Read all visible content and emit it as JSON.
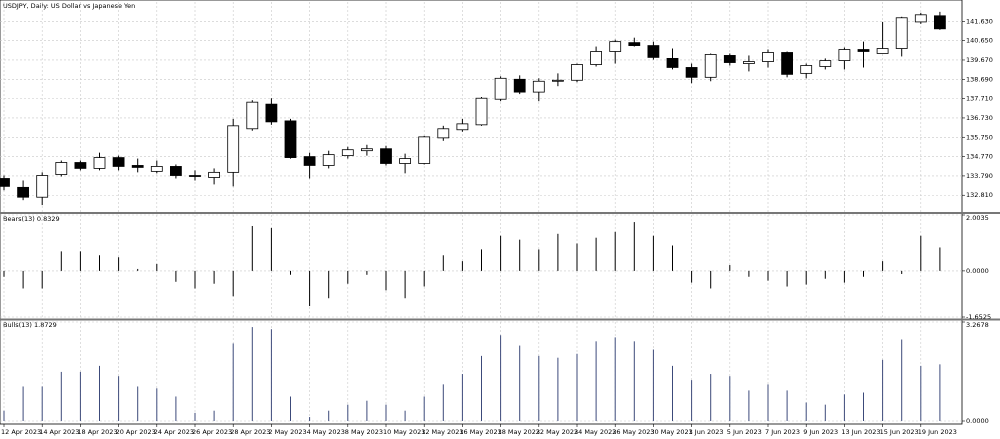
{
  "chart_data": [
    {
      "type": "candlestick",
      "title": "USDJPY, Daily: US Dollar vs Japanese Yen",
      "categories": [
        "12 Apr 2023",
        null,
        "14 Apr 2023",
        null,
        "18 Apr 2023",
        null,
        "20 Apr 2023",
        null,
        "24 Apr 2023",
        null,
        "26 Apr 2023",
        null,
        "28 Apr 2023",
        null,
        "2 May 2023",
        null,
        "4 May 2023",
        null,
        "8 May 2023",
        null,
        "10 May 2023",
        null,
        "12 May 2023",
        null,
        "16 May 2023",
        null,
        "18 May 2023",
        null,
        "22 May 2023",
        null,
        "24 May 2023",
        null,
        "26 May 2023",
        null,
        "30 May 2023",
        null,
        "1 Jun 2023",
        null,
        "5 Jun 2023",
        null,
        "7 Jun 2023",
        null,
        "9 Jun 2023",
        null,
        "13 Jun 2023",
        null,
        "15 Jun 2023",
        null,
        "19 Jun 2023",
        null
      ],
      "open": [
        133.66,
        133.21,
        132.71,
        133.86,
        134.47,
        134.17,
        134.72,
        134.32,
        134.02,
        134.27,
        133.81,
        133.71,
        133.97,
        136.18,
        137.43,
        136.58,
        134.77,
        134.32,
        134.82,
        135.07,
        135.17,
        134.42,
        134.42,
        135.72,
        136.13,
        136.38,
        137.68,
        138.69,
        138.04,
        138.59,
        138.64,
        139.44,
        140.1,
        140.55,
        140.4,
        139.75,
        139.29,
        138.79,
        139.9,
        139.49,
        139.59,
        140.05,
        138.99,
        139.34,
        139.64,
        140.2,
        140.0,
        140.25,
        141.6,
        141.91
      ],
      "high": [
        133.81,
        133.56,
        133.97,
        134.57,
        134.57,
        134.97,
        134.82,
        134.67,
        134.57,
        134.37,
        134.07,
        134.17,
        136.68,
        137.63,
        137.73,
        136.68,
        134.97,
        135.07,
        135.27,
        135.37,
        135.32,
        134.92,
        135.82,
        136.33,
        136.68,
        137.79,
        138.84,
        138.89,
        138.74,
        138.99,
        139.49,
        140.35,
        140.7,
        140.8,
        140.6,
        140.25,
        139.49,
        140.0,
        140.0,
        139.9,
        140.2,
        140.1,
        139.49,
        139.75,
        140.3,
        140.6,
        141.6,
        141.86,
        142.06,
        142.11
      ],
      "low": [
        133.06,
        132.56,
        132.31,
        133.76,
        134.07,
        134.07,
        134.07,
        133.97,
        133.92,
        133.66,
        133.56,
        133.36,
        133.26,
        136.08,
        136.38,
        134.67,
        133.66,
        134.17,
        134.67,
        134.82,
        134.32,
        133.92,
        134.37,
        135.57,
        136.03,
        136.33,
        137.58,
        137.94,
        137.58,
        138.34,
        138.54,
        139.34,
        139.49,
        140.35,
        139.69,
        139.19,
        138.49,
        138.59,
        139.39,
        139.09,
        139.29,
        138.79,
        138.74,
        139.19,
        139.19,
        139.29,
        140.0,
        139.85,
        141.5,
        141.2
      ],
      "close": [
        133.26,
        132.71,
        133.81,
        134.47,
        134.17,
        134.72,
        134.27,
        134.22,
        134.27,
        133.81,
        133.76,
        133.97,
        136.33,
        137.53,
        136.53,
        134.72,
        134.32,
        134.87,
        135.12,
        135.17,
        134.42,
        134.67,
        135.77,
        136.18,
        136.43,
        137.73,
        138.74,
        138.04,
        138.59,
        138.64,
        139.44,
        140.1,
        140.6,
        140.4,
        139.8,
        139.29,
        138.79,
        139.95,
        139.54,
        139.59,
        140.05,
        138.94,
        139.39,
        139.64,
        140.2,
        140.1,
        140.25,
        141.81,
        141.96,
        141.25
      ],
      "ylim": [
        131.96,
        142.61
      ],
      "yticks": [
        {
          "value": 132.81,
          "label": "132.810"
        },
        {
          "value": 133.79,
          "label": "133.790"
        },
        {
          "value": 134.77,
          "label": "134.770"
        },
        {
          "value": 135.75,
          "label": "135.750"
        },
        {
          "value": 136.73,
          "label": "136.730"
        },
        {
          "value": 137.71,
          "label": "137.710"
        },
        {
          "value": 138.69,
          "label": "138.690"
        },
        {
          "value": 139.67,
          "label": "139.670"
        },
        {
          "value": 140.65,
          "label": "140.650"
        },
        {
          "value": 141.63,
          "label": "141.630"
        }
      ],
      "up_color": "#ffffff",
      "down_color": "#000000",
      "grid": true
    },
    {
      "type": "bar",
      "title": "Bears(13) 0.8329",
      "values": [
        -0.21,
        -0.63,
        -0.63,
        0.7,
        0.7,
        0.56,
        0.49,
        0.07,
        0.25,
        -0.39,
        -0.63,
        -0.46,
        -0.91,
        1.61,
        1.54,
        -0.14,
        -1.26,
        -0.98,
        -0.46,
        -0.14,
        -0.7,
        -0.98,
        -0.56,
        0.56,
        0.35,
        0.77,
        1.26,
        1.12,
        0.77,
        1.33,
        0.98,
        1.19,
        1.4,
        1.75,
        1.26,
        0.91,
        -0.42,
        -0.63,
        0.21,
        -0.21,
        -0.35,
        -0.56,
        -0.49,
        -0.28,
        -0.42,
        -0.21,
        0.35,
        -0.11,
        1.26,
        0.84
      ],
      "ylim": [
        -1.6525,
        2.0035
      ],
      "yticks": [
        -1.6525,
        {
          "value": 0,
          "label": "0.0000"
        },
        2.0035
      ],
      "color": "#000000",
      "grid": true
    },
    {
      "type": "bar",
      "title": "Bulls(13) 1.8729",
      "values": [
        0.34,
        1.14,
        1.14,
        1.62,
        1.62,
        1.82,
        1.48,
        1.14,
        1.08,
        0.81,
        0.27,
        0.34,
        2.56,
        3.1,
        3.03,
        0.81,
        0.13,
        0.34,
        0.54,
        0.67,
        0.54,
        0.34,
        0.81,
        1.21,
        1.55,
        2.15,
        2.83,
        2.49,
        2.15,
        2.09,
        2.22,
        2.63,
        2.76,
        2.63,
        2.36,
        1.82,
        1.35,
        1.55,
        1.48,
        1.01,
        1.21,
        1.01,
        0.61,
        0.54,
        0.88,
        0.94,
        2.02,
        2.69,
        1.82,
        1.87
      ],
      "ylim": [
        0,
        3.2678
      ],
      "yticks": [
        {
          "value": 0,
          "label": "0.0000"
        },
        3.2678
      ],
      "color": "#3c4a7a",
      "grid": true
    }
  ]
}
